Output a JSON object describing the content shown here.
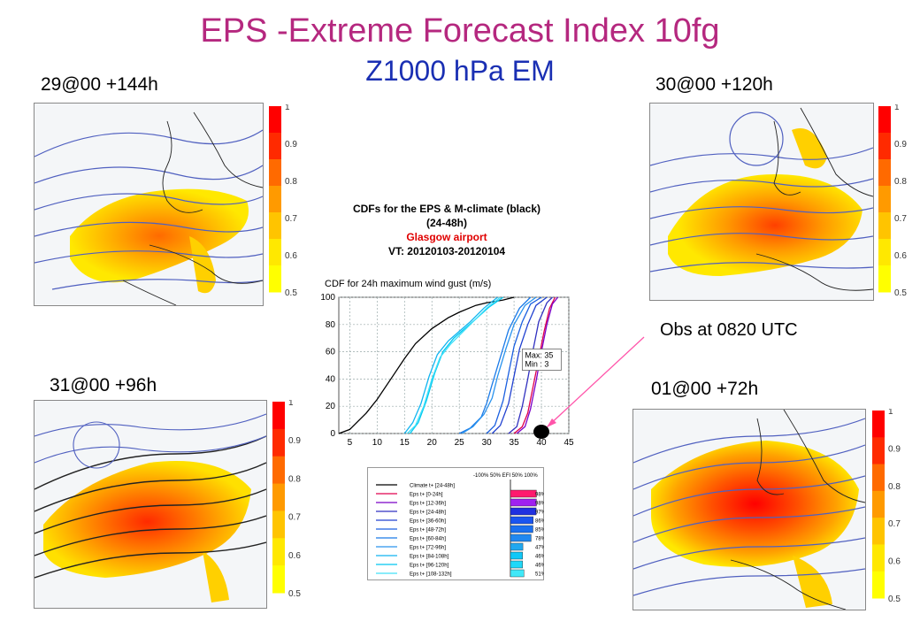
{
  "header": {
    "title": "EPS -Extreme Forecast Index 10fg",
    "subtitle": "Z1000 hPa EM"
  },
  "panels": [
    {
      "label": "29@00 +144h"
    },
    {
      "label": "30@00 +120h"
    },
    {
      "label": "31@00 +96h"
    },
    {
      "label": "01@00 +72h"
    }
  ],
  "colorbar": {
    "ticks": [
      "1",
      "0.9",
      "0.8",
      "0.7",
      "0.6",
      "0.5"
    ],
    "colors": [
      "#ff0000",
      "#ff2a00",
      "#ff6a00",
      "#ff9a00",
      "#ffc400",
      "#ffe800",
      "#ffff00"
    ]
  },
  "cdf_header": {
    "line1": "CDFs for the EPS & M-climate (black)",
    "line2": "(24-48h)",
    "line3": "Glasgow airport",
    "line4": "VT: 20120103-20120104"
  },
  "annotation": {
    "obs": "Obs at  0820 UTC"
  },
  "chart_data": [
    {
      "type": "line",
      "title": "CDF for 24h maximum wind gust (m/s)",
      "xlim": [
        3,
        45
      ],
      "ylim": [
        0,
        100
      ],
      "xticks": [
        5,
        10,
        15,
        20,
        25,
        30,
        35,
        40,
        45
      ],
      "yticks": [
        0,
        20,
        40,
        60,
        80,
        100
      ],
      "grid": true,
      "annotation": "Max: 35\nMin : 3",
      "series": [
        {
          "name": "Climate t+ [24-48h]",
          "color": "#000000",
          "x": [
            3,
            5,
            8,
            10,
            13,
            15,
            17,
            20,
            23,
            25,
            28,
            30,
            33,
            35
          ],
          "y": [
            0,
            3,
            15,
            25,
            43,
            55,
            66,
            77,
            85,
            89,
            94,
            96,
            98,
            100
          ]
        },
        {
          "name": "Eps t+ [0-24h]",
          "color": "#e0004d",
          "x": [
            35,
            36.5,
            37.5,
            38.5,
            39.5,
            40.5,
            41.5,
            42.5
          ],
          "y": [
            0,
            5,
            15,
            35,
            55,
            75,
            92,
            100
          ]
        },
        {
          "name": "Eps t+ [12-36h]",
          "color": "#7a00c8",
          "x": [
            35.5,
            37,
            38,
            39,
            40,
            41,
            42,
            43
          ],
          "y": [
            0,
            5,
            18,
            38,
            60,
            80,
            95,
            100
          ]
        },
        {
          "name": "Eps t+ [24-48h]",
          "color": "#3030c0",
          "x": [
            34,
            35.5,
            36.5,
            37.5,
            38.5,
            39.5,
            41,
            42
          ],
          "y": [
            0,
            5,
            20,
            40,
            62,
            82,
            96,
            100
          ]
        },
        {
          "name": "Eps t+ [36-60h]",
          "color": "#2040d0",
          "x": [
            31,
            32.5,
            34,
            35,
            36,
            37.5,
            39,
            41
          ],
          "y": [
            0,
            6,
            22,
            42,
            62,
            80,
            94,
            100
          ]
        },
        {
          "name": "Eps t+ [48-72h]",
          "color": "#1a5fe0",
          "x": [
            30,
            31.5,
            33,
            34,
            35,
            36.5,
            38,
            40
          ],
          "y": [
            0,
            6,
            24,
            44,
            64,
            82,
            95,
            100
          ]
        },
        {
          "name": "Eps t+ [60-84h]",
          "color": "#1a7ae8",
          "x": [
            25,
            27,
            29,
            30,
            31,
            32.5,
            34,
            36,
            38
          ],
          "y": [
            0,
            4,
            12,
            22,
            36,
            56,
            76,
            92,
            100
          ]
        },
        {
          "name": "Eps t+ [72-96h]",
          "color": "#2a93ee",
          "x": [
            25.5,
            27.5,
            29.5,
            31,
            32,
            33.5,
            35,
            37,
            39
          ],
          "y": [
            0,
            5,
            14,
            26,
            42,
            62,
            80,
            94,
            100
          ]
        },
        {
          "name": "Eps t+ [84-108h]",
          "color": "#10b4f0",
          "x": [
            15,
            16.5,
            18,
            19.5,
            21,
            23,
            25,
            27,
            29.5,
            32
          ],
          "y": [
            0,
            8,
            22,
            42,
            58,
            68,
            75,
            82,
            92,
            100
          ]
        },
        {
          "name": "Eps t+ [96-120h]",
          "color": "#00c8f0",
          "x": [
            16,
            17.5,
            19,
            20.5,
            22,
            24,
            26,
            28,
            30.5,
            33
          ],
          "y": [
            0,
            8,
            24,
            44,
            60,
            70,
            77,
            84,
            93,
            100
          ]
        },
        {
          "name": "Eps t+ [108-132h]",
          "color": "#40e0f8",
          "x": [
            15.5,
            17,
            18.5,
            20,
            21.5,
            23.5,
            25.5,
            27.5,
            30,
            32.5
          ],
          "y": [
            0,
            6,
            20,
            40,
            56,
            66,
            74,
            82,
            92,
            100
          ]
        }
      ]
    },
    {
      "type": "bar",
      "title": "EFI",
      "xticks": [
        "-100%",
        "50%",
        "EFI",
        "50%",
        "100%"
      ],
      "xlim": [
        -100,
        100
      ],
      "categories": [
        "Climate t+ [24-48h]",
        "Eps t+ [0-24h]",
        "Eps t+ [12-36h]",
        "Eps t+ [24-48h]",
        "Eps t+ [36-60h]",
        "Eps t+ [48-72h]",
        "Eps t+ [60-84h]",
        "Eps t+ [72-96h]",
        "Eps t+ [84-108h]",
        "Eps t+ [96-120h]",
        "Eps t+ [108-132h]"
      ],
      "values": [
        null,
        98,
        98,
        97,
        86,
        85,
        78,
        47,
        46,
        46,
        51
      ],
      "labels": [
        "",
        "98%",
        "98%",
        "97%",
        "86%",
        "85%",
        "78%",
        "47%",
        "46%",
        "46%",
        "51%"
      ],
      "colors": [
        "#000000",
        "#ff1a6e",
        "#a020f0",
        "#2030e0",
        "#1a55f0",
        "#1a70f0",
        "#2088f0",
        "#20a8f0",
        "#10c8f8",
        "#20d8f8",
        "#40e8f8"
      ]
    }
  ]
}
